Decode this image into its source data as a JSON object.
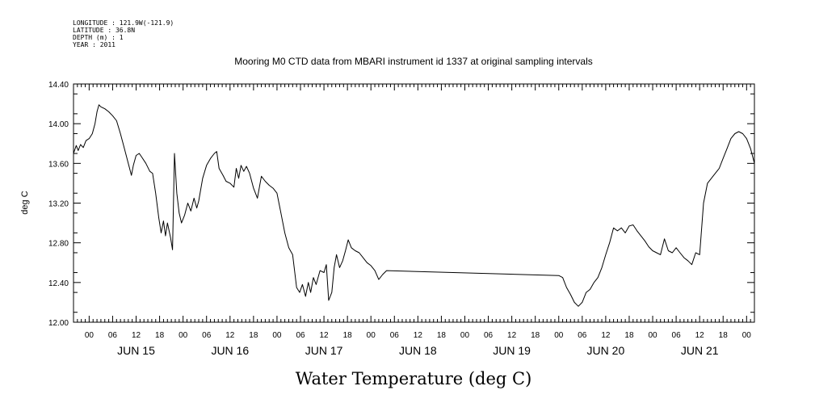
{
  "header": {
    "longitude": "LONGITUDE : 121.9W(-121.9)",
    "latitude": "LATITUDE : 36.8N",
    "depth": "DEPTH (m) : 1",
    "year": "YEAR : 2011"
  },
  "chart_data": {
    "type": "line",
    "title": "Mooring M0 CTD data from MBARI instrument id 1337 at original sampling intervals",
    "xlabel": "Water Temperature (deg C)",
    "ylabel": "deg C",
    "x_unit": "hours since JUN 15 00:00",
    "xlim": [
      -4,
      170
    ],
    "ylim": [
      12.0,
      14.4
    ],
    "y_ticks": [
      "12.00",
      "12.40",
      "12.80",
      "13.20",
      "13.60",
      "14.00",
      "14.40"
    ],
    "hour_tick_labels": [
      "00",
      "06",
      "12",
      "18"
    ],
    "day_labels": [
      "JUN 15",
      "JUN 16",
      "JUN 17",
      "JUN 18",
      "JUN 19",
      "JUN 20",
      "JUN 21"
    ],
    "grid": false,
    "series": [
      {
        "values": [
          [
            -4,
            13.7
          ],
          [
            -3.3,
            13.78
          ],
          [
            -2.8,
            13.73
          ],
          [
            -2.2,
            13.79
          ],
          [
            -1.5,
            13.76
          ],
          [
            -0.8,
            13.83
          ],
          [
            0,
            13.85
          ],
          [
            0.8,
            13.9
          ],
          [
            1.5,
            14.0
          ],
          [
            2,
            14.12
          ],
          [
            2.5,
            14.19
          ],
          [
            3,
            14.17
          ],
          [
            4,
            14.15
          ],
          [
            5,
            14.12
          ],
          [
            6,
            14.08
          ],
          [
            7,
            14.03
          ],
          [
            8,
            13.9
          ],
          [
            9,
            13.75
          ],
          [
            10,
            13.6
          ],
          [
            10.8,
            13.48
          ],
          [
            11.3,
            13.58
          ],
          [
            12,
            13.68
          ],
          [
            12.8,
            13.7
          ],
          [
            13.5,
            13.66
          ],
          [
            14.5,
            13.6
          ],
          [
            15.5,
            13.52
          ],
          [
            16.2,
            13.5
          ],
          [
            17,
            13.3
          ],
          [
            17.8,
            13.05
          ],
          [
            18.4,
            12.9
          ],
          [
            19,
            13.02
          ],
          [
            19.5,
            12.87
          ],
          [
            20,
            13.0
          ],
          [
            20.8,
            12.85
          ],
          [
            21.3,
            12.73
          ],
          [
            21.8,
            13.7
          ],
          [
            22.4,
            13.3
          ],
          [
            23,
            13.1
          ],
          [
            23.6,
            13.0
          ],
          [
            24.4,
            13.08
          ],
          [
            25.2,
            13.2
          ],
          [
            26,
            13.12
          ],
          [
            26.8,
            13.25
          ],
          [
            27.5,
            13.15
          ],
          [
            28,
            13.22
          ],
          [
            29,
            13.45
          ],
          [
            30,
            13.58
          ],
          [
            31,
            13.65
          ],
          [
            32,
            13.7
          ],
          [
            32.6,
            13.72
          ],
          [
            33.2,
            13.55
          ],
          [
            34.2,
            13.48
          ],
          [
            35,
            13.42
          ],
          [
            36,
            13.4
          ],
          [
            37,
            13.36
          ],
          [
            37.6,
            13.55
          ],
          [
            38.2,
            13.45
          ],
          [
            38.8,
            13.58
          ],
          [
            39.5,
            13.52
          ],
          [
            40.2,
            13.57
          ],
          [
            41,
            13.5
          ],
          [
            42,
            13.35
          ],
          [
            43,
            13.25
          ],
          [
            44,
            13.47
          ],
          [
            45,
            13.42
          ],
          [
            46,
            13.38
          ],
          [
            47,
            13.35
          ],
          [
            48,
            13.3
          ],
          [
            49,
            13.1
          ],
          [
            50,
            12.9
          ],
          [
            51,
            12.75
          ],
          [
            52,
            12.68
          ],
          [
            53,
            12.35
          ],
          [
            53.8,
            12.3
          ],
          [
            54.5,
            12.38
          ],
          [
            55.3,
            12.26
          ],
          [
            56,
            12.4
          ],
          [
            56.6,
            12.3
          ],
          [
            57.3,
            12.45
          ],
          [
            58,
            12.38
          ],
          [
            59,
            12.52
          ],
          [
            60,
            12.5
          ],
          [
            60.6,
            12.58
          ],
          [
            61.2,
            12.22
          ],
          [
            62,
            12.3
          ],
          [
            62.6,
            12.55
          ],
          [
            63.2,
            12.68
          ],
          [
            64,
            12.55
          ],
          [
            64.8,
            12.62
          ],
          [
            65.5,
            12.72
          ],
          [
            66.2,
            12.83
          ],
          [
            67,
            12.75
          ],
          [
            68,
            12.72
          ],
          [
            69,
            12.7
          ],
          [
            70,
            12.65
          ],
          [
            71,
            12.6
          ],
          [
            72,
            12.57
          ],
          [
            73,
            12.52
          ],
          [
            74,
            12.43
          ],
          [
            75,
            12.48
          ],
          [
            76,
            12.52
          ],
          [
            120,
            12.47
          ],
          [
            121,
            12.45
          ],
          [
            122,
            12.35
          ],
          [
            123,
            12.28
          ],
          [
            124,
            12.2
          ],
          [
            125,
            12.16
          ],
          [
            126,
            12.2
          ],
          [
            127,
            12.3
          ],
          [
            128,
            12.33
          ],
          [
            129,
            12.4
          ],
          [
            130,
            12.45
          ],
          [
            131,
            12.55
          ],
          [
            132,
            12.68
          ],
          [
            133,
            12.8
          ],
          [
            134,
            12.95
          ],
          [
            135,
            12.92
          ],
          [
            136,
            12.95
          ],
          [
            137,
            12.9
          ],
          [
            138,
            12.97
          ],
          [
            139,
            12.98
          ],
          [
            140,
            12.92
          ],
          [
            141,
            12.87
          ],
          [
            142,
            12.82
          ],
          [
            143,
            12.76
          ],
          [
            144,
            12.72
          ],
          [
            145,
            12.7
          ],
          [
            146,
            12.68
          ],
          [
            147,
            12.84
          ],
          [
            148,
            12.72
          ],
          [
            149,
            12.7
          ],
          [
            150,
            12.75
          ],
          [
            151,
            12.7
          ],
          [
            152,
            12.65
          ],
          [
            153,
            12.62
          ],
          [
            154,
            12.58
          ],
          [
            155,
            12.7
          ],
          [
            156,
            12.68
          ],
          [
            157,
            13.2
          ],
          [
            158,
            13.4
          ],
          [
            159,
            13.45
          ],
          [
            160,
            13.5
          ],
          [
            161,
            13.55
          ],
          [
            162,
            13.65
          ],
          [
            163,
            13.75
          ],
          [
            164,
            13.85
          ],
          [
            165,
            13.9
          ],
          [
            166,
            13.92
          ],
          [
            167,
            13.9
          ],
          [
            168,
            13.85
          ],
          [
            169,
            13.75
          ],
          [
            170,
            13.6
          ]
        ]
      }
    ]
  }
}
